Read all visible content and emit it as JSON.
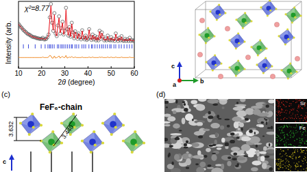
{
  "chart_data": {
    "type": "scatter",
    "xlabel": "2θ (degree)",
    "ylabel": "Intensity (arb.",
    "annotations": [
      "χ²=8.77"
    ],
    "xlim": [
      10,
      60
    ],
    "xticks": [
      10,
      20,
      30,
      40,
      50,
      60
    ],
    "ylim": [
      -25,
      100
    ],
    "tick_labels": "x",
    "grid": false,
    "x": [
      10,
      10.5,
      11,
      11.5,
      12,
      12.5,
      13,
      13.5,
      14,
      14.5,
      15,
      15.5,
      16,
      16.5,
      17,
      17.5,
      18,
      18.5,
      19,
      19.5,
      20,
      20.5,
      21,
      21.5,
      22,
      22.5,
      23,
      23.5,
      24,
      24.5,
      25,
      25.5,
      26,
      26.5,
      27,
      27.5,
      28,
      28.5,
      29,
      29.5,
      30,
      30.5,
      31,
      31.5,
      32,
      32.5,
      33,
      33.5,
      34,
      34.5,
      35,
      35.5,
      36,
      36.5,
      37,
      37.5,
      38,
      38.5,
      39,
      39.5,
      40,
      40.5,
      41,
      41.5,
      42,
      42.5,
      43,
      43.5,
      44,
      44.5,
      45,
      45.5,
      46,
      46.5,
      47,
      47.5,
      48,
      48.5,
      49,
      49.5,
      50,
      50.5,
      51,
      51.5,
      52,
      52.5,
      53,
      53.5,
      54,
      54.5,
      55,
      55.5,
      56,
      56.5,
      57,
      57.5,
      58,
      58.5,
      59,
      59.5,
      60
    ],
    "series": [
      {
        "type": "scatter",
        "marker": "circle",
        "color": "#4a4a4a",
        "values": [
          58,
          55,
          52,
          50,
          47,
          45,
          43,
          41,
          39,
          38,
          37,
          35,
          34,
          33,
          33,
          32,
          31,
          31,
          30,
          30,
          30,
          32,
          29,
          29,
          30,
          33,
          38,
          70,
          95,
          60,
          45,
          78,
          40,
          35,
          55,
          72,
          40,
          50,
          62,
          38,
          45,
          88,
          48,
          36,
          52,
          34,
          60,
          42,
          31,
          44,
          38,
          30,
          40,
          33,
          29,
          46,
          32,
          29,
          36,
          28,
          30,
          48,
          33,
          28,
          38,
          29,
          35,
          27,
          33,
          27,
          45,
          30,
          42,
          34,
          27,
          30,
          27,
          36,
          28,
          27,
          33,
          27,
          30,
          26,
          40,
          30,
          26,
          32,
          27,
          35,
          27,
          26,
          30,
          26,
          29,
          26,
          32,
          26,
          28,
          26,
          27
        ]
      },
      {
        "type": "line",
        "color": "#e8101a",
        "values": [
          57,
          55,
          52,
          50,
          47,
          45,
          43,
          41,
          39,
          38,
          37,
          35,
          34,
          33,
          33,
          32,
          31,
          31,
          30,
          30,
          30,
          31,
          29,
          29,
          30,
          33,
          37,
          66,
          92,
          61,
          46,
          75,
          41,
          35,
          54,
          69,
          41,
          49,
          60,
          38,
          45,
          84,
          49,
          36,
          51,
          34,
          58,
          42,
          31,
          43,
          38,
          30,
          40,
          33,
          29,
          45,
          32,
          29,
          36,
          28,
          30,
          47,
          33,
          28,
          37,
          29,
          35,
          27,
          33,
          27,
          44,
          30,
          41,
          34,
          27,
          30,
          27,
          35,
          28,
          27,
          32,
          27,
          30,
          26,
          39,
          30,
          26,
          32,
          27,
          34,
          27,
          26,
          30,
          26,
          29,
          26,
          31,
          26,
          28,
          26,
          27
        ]
      },
      {
        "type": "line",
        "color": "#f08a24",
        "values": [
          -4,
          -5,
          -5,
          -5,
          -5,
          -5,
          -5,
          -5,
          -5,
          -5,
          -5,
          -5,
          -5,
          -5,
          -5,
          -5,
          -5,
          -5,
          -5,
          -5,
          -5,
          -4,
          -5,
          -5,
          -5,
          -5,
          -4,
          -1,
          -2,
          -6,
          -6,
          -2,
          -6,
          -5,
          -4,
          -2,
          -6,
          -4,
          -3,
          -5,
          -5,
          -1,
          -6,
          -5,
          -4,
          -5,
          -3,
          -5,
          -5,
          -4,
          -5,
          -5,
          -5,
          -5,
          -5,
          -4,
          -5,
          -5,
          -5,
          -5,
          -5,
          -4,
          -5,
          -5,
          -4,
          -5,
          -5,
          -5,
          -5,
          -5,
          -4,
          -5,
          -4,
          -5,
          -5,
          -5,
          -5,
          -4,
          -5,
          -5,
          -4,
          -5,
          -5,
          -5,
          -4,
          -5,
          -5,
          -5,
          -5,
          -4,
          -5,
          -5,
          -5,
          -5,
          -5,
          -5,
          -4,
          -5,
          -5,
          -5,
          -5
        ]
      }
    ],
    "bragg": {
      "color": "#2233d8",
      "x": [
        12.1,
        14.3,
        17.2,
        19.8,
        21.5,
        22.7,
        23.4,
        23.9,
        24.6,
        25.4,
        26.8,
        27.4,
        28.3,
        28.9,
        29.6,
        30.4,
        31.2,
        32.0,
        32.8,
        33.2,
        34.4,
        35.1,
        36.0,
        37.4,
        38.2,
        39.0,
        40.4,
        41.5,
        42.0,
        43.0,
        44.0,
        45.0,
        45.9,
        46.6,
        47.5,
        48.4,
        49.4,
        50.0,
        51.2,
        52.0,
        53.4,
        54.4,
        55.6,
        56.8,
        57.9,
        59.0
      ]
    }
  },
  "structure": {
    "axis_labels": [
      "c",
      "b",
      "a"
    ]
  },
  "chain": {
    "label": "(c)",
    "title": "FeF₆-chain",
    "distances": [
      "3.632",
      "3.440"
    ],
    "axis_label": "c"
  },
  "sem": {
    "label": "(d)",
    "maps": [
      {
        "element": "Sr",
        "color": "#e0281e"
      },
      {
        "element": "Fe",
        "color": "#2ec02e"
      },
      {
        "color": "#e6d21e"
      }
    ]
  }
}
